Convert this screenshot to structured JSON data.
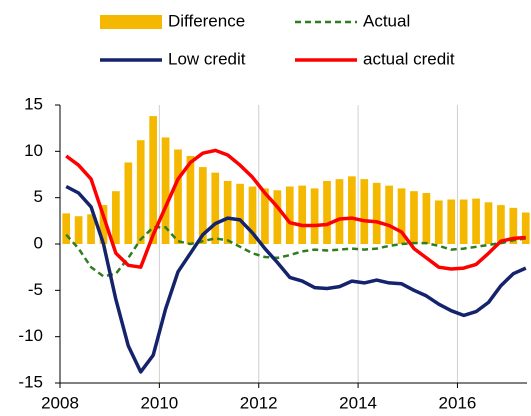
{
  "chart_data": {
    "type": "combo",
    "x": [
      2008.125,
      2008.375,
      2008.625,
      2008.875,
      2009.125,
      2009.375,
      2009.625,
      2009.875,
      2010.125,
      2010.375,
      2010.625,
      2010.875,
      2011.125,
      2011.375,
      2011.625,
      2011.875,
      2012.125,
      2012.375,
      2012.625,
      2012.875,
      2013.125,
      2013.375,
      2013.625,
      2013.875,
      2014.125,
      2014.375,
      2014.625,
      2014.875,
      2015.125,
      2015.375,
      2015.625,
      2015.875,
      2016.125,
      2016.375,
      2016.625,
      2016.875,
      2017.125,
      2017.375
    ],
    "series": [
      {
        "name": "Difference",
        "type": "bar",
        "color": "#f5b800",
        "values": [
          3.3,
          3.0,
          3.2,
          4.2,
          5.7,
          8.8,
          11.2,
          13.8,
          11.5,
          10.2,
          9.5,
          8.3,
          7.7,
          6.8,
          6.5,
          6.2,
          6.0,
          5.8,
          6.2,
          6.3,
          6.0,
          6.8,
          7.0,
          7.3,
          7.0,
          6.6,
          6.3,
          6.0,
          5.7,
          5.5,
          4.7,
          4.8,
          4.8,
          4.9,
          4.5,
          4.2,
          3.9,
          3.4
        ]
      },
      {
        "name": "Actual",
        "type": "line",
        "dashed": true,
        "color": "#2e7d1e",
        "values": [
          1,
          -0.5,
          -2.5,
          -3.5,
          -3.2,
          -1.5,
          0.5,
          1.8,
          1.8,
          0.3,
          0,
          0.3,
          0.6,
          0.4,
          -0.3,
          -1,
          -1.4,
          -1.5,
          -1.2,
          -0.8,
          -0.6,
          -0.7,
          -0.6,
          -0.5,
          -0.6,
          -0.5,
          -0.2,
          0,
          0.1,
          0.1,
          -0.2,
          -0.6,
          -0.5,
          -0.3,
          -0.1,
          0.1,
          0.4,
          0.6
        ]
      },
      {
        "name": "Low credit",
        "type": "line",
        "dashed": false,
        "color": "#14236b",
        "values": [
          6.2,
          5.5,
          4,
          0,
          -6,
          -11,
          -13.8,
          -12,
          -7,
          -3,
          -1,
          1,
          2.2,
          2.8,
          2.6,
          1.2,
          -0.5,
          -2,
          -3.6,
          -4,
          -4.7,
          -4.8,
          -4.6,
          -4,
          -4.2,
          -3.9,
          -4.2,
          -4.3,
          -5,
          -5.6,
          -6.5,
          -7.2,
          -7.7,
          -7.3,
          -6.3,
          -4.5,
          -3.2,
          -2.6
        ]
      },
      {
        "name": "actual credit",
        "type": "line",
        "dashed": false,
        "color": "#ff0000",
        "values": [
          9.5,
          8.5,
          7,
          3,
          -1,
          -2.3,
          -2.5,
          1,
          4,
          7,
          8.8,
          9.8,
          10.1,
          9.6,
          8.5,
          7.2,
          5.5,
          4,
          2.3,
          2,
          2,
          2.1,
          2.7,
          2.8,
          2.5,
          2.4,
          2,
          1.3,
          -0.5,
          -1.5,
          -2.5,
          -2.7,
          -2.6,
          -2.2,
          -1,
          0.3,
          0.6,
          0.7
        ]
      }
    ],
    "xlim": [
      2008,
      2017.4
    ],
    "xticks": [
      2008,
      2010,
      2012,
      2014,
      2016
    ],
    "ylim": [
      -15,
      15
    ],
    "yticks": [
      -15,
      -10,
      -5,
      0,
      5,
      10,
      15
    ],
    "grid": "x"
  }
}
